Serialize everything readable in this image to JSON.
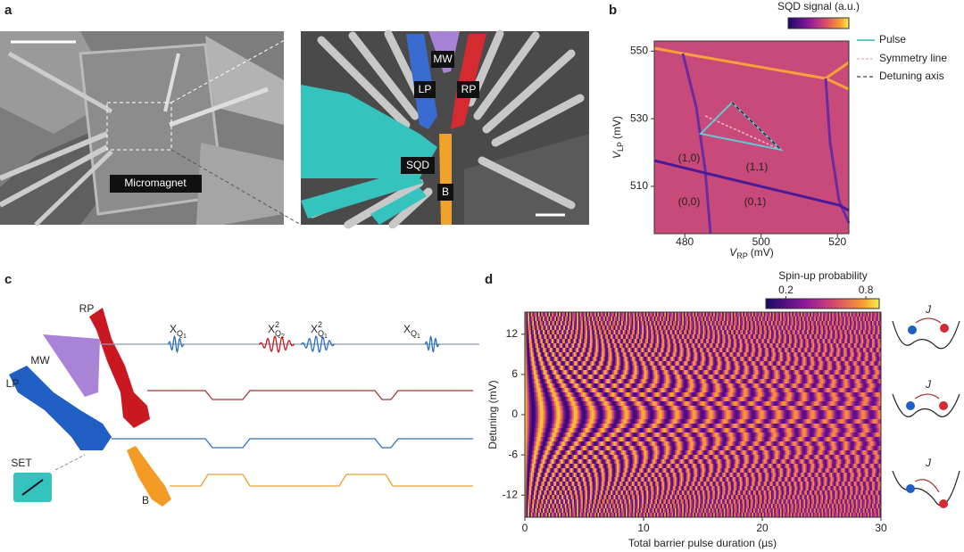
{
  "panel_a": {
    "label": "a",
    "image_labels": {
      "micromagnet": "Micromagnet",
      "mw": "MW",
      "lp": "LP",
      "rp": "RP",
      "sqd": "SQD",
      "b": "B"
    }
  },
  "panel_b": {
    "label": "b",
    "colorbar_label": "SQD signal (a.u.)",
    "legend": [
      "Pulse",
      "Symmetry line",
      "Detuning axis"
    ],
    "xlabel": [
      "V",
      "RP",
      "(mV)"
    ],
    "ylabel": [
      "V",
      "LP",
      "(mV)"
    ],
    "xlim": [
      472,
      523
    ],
    "xticks": [
      480,
      500,
      520
    ],
    "ylim": [
      496,
      553
    ],
    "yticks": [
      510,
      530,
      550
    ],
    "regions": [
      "(1,0)",
      "(1,1)",
      "(0,0)",
      "(0,1)"
    ]
  },
  "panel_c": {
    "label": "c",
    "gates": [
      "RP",
      "MW",
      "LP",
      "SET",
      "B"
    ],
    "pulses": [
      {
        "base": "X",
        "sub": "Q",
        "subsub": "1"
      },
      {
        "base": "X",
        "sup": "2",
        "sub": "Q",
        "subsub": "2"
      },
      {
        "base": "X",
        "sup": "2",
        "sub": "Q",
        "subsub": "1"
      },
      {
        "base": "X",
        "sub": "Q",
        "subsub": "1"
      }
    ]
  },
  "panel_d": {
    "label": "d",
    "colorbar_label": "Spin-up probability",
    "clim": [
      0.05,
      0.9
    ],
    "cticks": [
      0.2,
      0.8
    ],
    "xlabel": "Total barrier pulse duration (µs)",
    "ylabel": "Detuning (mV)",
    "xlim": [
      0,
      30
    ],
    "xticks": [
      0,
      10,
      20,
      30
    ],
    "ylim": [
      -15.3,
      15.3
    ],
    "yticks": [
      -12,
      -6,
      0,
      6,
      12
    ],
    "insets": [
      "J",
      "J",
      "J"
    ]
  }
}
